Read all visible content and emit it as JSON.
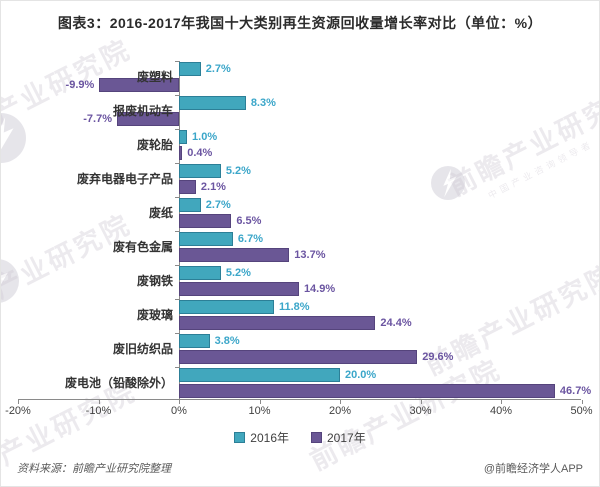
{
  "title": "图表3：2016-2017年我国十大类别再生资源回收量增长率对比（单位：%）",
  "chart_data": {
    "type": "bar",
    "orientation": "horizontal",
    "title": "图表3：2016-2017年我国十大类别再生资源回收量增长率对比（单位：%）",
    "unit": "%",
    "categories": [
      "废塑料",
      "报废机动车",
      "废轮胎",
      "废弃电器电子产品",
      "废纸",
      "废有色金属",
      "废钢铁",
      "废玻璃",
      "废旧纺织品",
      "废电池（铅酸除外）"
    ],
    "series": [
      {
        "name": "2016年",
        "color": "#41a7bd",
        "values": [
          2.7,
          8.3,
          1.0,
          5.2,
          2.7,
          6.7,
          5.2,
          11.8,
          3.8,
          20.0
        ]
      },
      {
        "name": "2017年",
        "color": "#6a5795",
        "values": [
          -9.9,
          -7.7,
          0.4,
          2.1,
          6.5,
          13.7,
          14.9,
          24.4,
          29.6,
          46.7
        ]
      }
    ],
    "xlim": [
      -20,
      50
    ],
    "x_tick_values": [
      -20,
      -10,
      0,
      10,
      20,
      30,
      40,
      50
    ],
    "x_tick_labels": [
      "-20%",
      "-10%",
      "0%",
      "10%",
      "20%",
      "30%",
      "40%",
      "50%"
    ],
    "grid": false,
    "legend_position": "bottom",
    "value_label_format": "one-decimal-percent"
  },
  "footer": {
    "source": "资料来源：前瞻产业研究院整理",
    "credit": "@前瞻经济学人APP"
  },
  "watermark": {
    "text": "前瞻产业研究院",
    "subtext": "中国产业咨询领导者"
  }
}
